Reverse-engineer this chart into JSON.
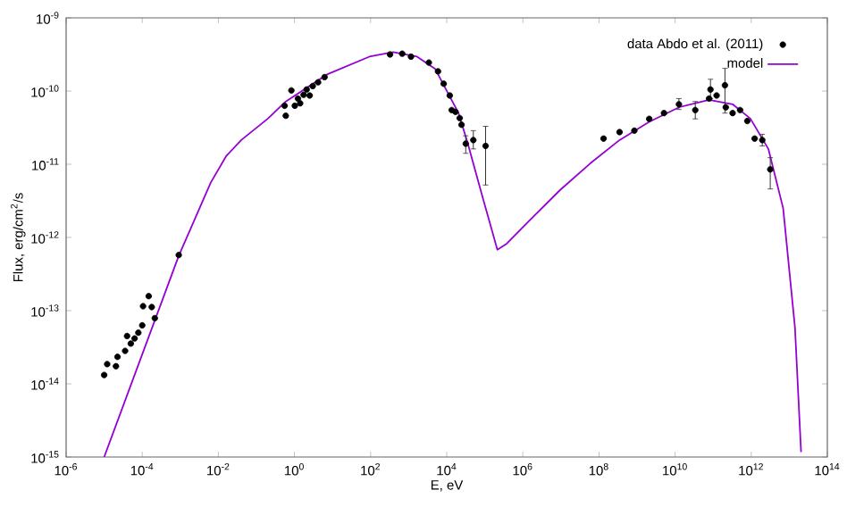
{
  "chart_data": {
    "type": "scatter",
    "xlabel": "E, eV",
    "ylabel": "Flux, erg/cm$^{2}$/s",
    "log": "xy",
    "grid": false,
    "legend": "top right",
    "xlim": [
      1e-06,
      100000000000000.0
    ],
    "ylim": [
      1e-15,
      1e-09
    ],
    "xticks": [
      {
        "value": 1e-06,
        "label": "10$^{-6}$"
      },
      {
        "value": 0.0001,
        "label": "10$^{-4}$"
      },
      {
        "value": 0.01,
        "label": "10$^{-2}$"
      },
      {
        "value": 1,
        "label": "10$^{0}$"
      },
      {
        "value": 100.0,
        "label": "10$^{2}$"
      },
      {
        "value": 10000.0,
        "label": "10$^{4}$"
      },
      {
        "value": 1000000.0,
        "label": "10$^{6}$"
      },
      {
        "value": 100000000.0,
        "label": "10$^{8}$"
      },
      {
        "value": 10000000000.0,
        "label": "10$^{10}$"
      },
      {
        "value": 1000000000000.0,
        "label": "10$^{12}$"
      },
      {
        "value": 100000000000000.0,
        "label": "10$^{14}$"
      }
    ],
    "yticks": [
      {
        "value": 1e-15,
        "label": "10$^{-15}$"
      },
      {
        "value": 1e-14,
        "label": "10$^{-14}$"
      },
      {
        "value": 1e-13,
        "label": "10$^{-13}$"
      },
      {
        "value": 1e-12,
        "label": "10$^{-12}$"
      },
      {
        "value": 1e-11,
        "label": "10$^{-11}$"
      },
      {
        "value": 1e-10,
        "label": "10$^{-10}$"
      },
      {
        "value": 1e-09,
        "label": "10$^{-9}$"
      }
    ],
    "series": [
      {
        "name": "data Abdo et al. (2011)",
        "color": "#000000",
        "marker": "circle",
        "x": [
          1e-05,
          1.2e-05,
          2.04e-05,
          2.24e-05,
          3.55e-05,
          4e-05,
          5e-05,
          6.3e-05,
          7.9e-05,
          0.0001,
          0.000105,
          0.000148,
          0.000178,
          0.000214,
          0.00091,
          0.55,
          0.59,
          0.83,
          1.02,
          1.23,
          1.41,
          1.74,
          2.09,
          2.51,
          3.02,
          4.17,
          6.17,
          324,
          676,
          1150,
          3390,
          5890,
          8320,
          12000.0,
          13500.0,
          17000.0,
          21900.0,
          24500.0,
          31600.0,
          50000.0,
          105000.0,
          132000000.0,
          347000000.0,
          850000000.0,
          2090000000.0,
          5100000000.0,
          12600000000.0,
          33900000000.0,
          78000000000.0,
          85000000000.0,
          123000000000.0,
          204000000000.0,
          214000000000.0,
          324000000000.0,
          510000000000.0,
          790000000000.0,
          1230000000000.0,
          1950000000000.0,
          3160000000000.0
        ],
        "values": [
          1.32e-14,
          1.86e-14,
          1.74e-14,
          2.34e-14,
          2.82e-14,
          4.5e-14,
          3.55e-14,
          4.17e-14,
          5e-14,
          6.3e-14,
          1.15e-13,
          1.58e-13,
          1.12e-13,
          7.9e-14,
          5.75e-13,
          6.3e-11,
          4.6e-11,
          1.02e-10,
          6.3e-11,
          7.9e-11,
          6.8e-11,
          8.9e-11,
          1.05e-10,
          8.7e-11,
          1.17e-10,
          1.32e-10,
          1.55e-10,
          3.16e-10,
          3.24e-10,
          2.95e-10,
          2.45e-10,
          1.86e-10,
          1.26e-10,
          8.7e-11,
          5.5e-11,
          5.2e-11,
          4.27e-11,
          3.47e-11,
          1.91e-11,
          2.14e-11,
          1.78e-11,
          2.24e-11,
          2.75e-11,
          2.88e-11,
          4.17e-11,
          5e-11,
          6.6e-11,
          5.5e-11,
          7.9e-11,
          1.05e-10,
          8.7e-11,
          1.2e-10,
          6e-11,
          5e-11,
          5.5e-11,
          3.9e-11,
          2.24e-11,
          2.14e-11,
          8.5e-12
        ],
        "errors": [
          null,
          null,
          null,
          null,
          null,
          null,
          null,
          null,
          null,
          null,
          null,
          null,
          null,
          null,
          null,
          null,
          null,
          null,
          null,
          null,
          null,
          null,
          null,
          null,
          null,
          null,
          null,
          null,
          null,
          null,
          null,
          null,
          null,
          null,
          null,
          null,
          null,
          null,
          [
            1.41e-11,
            2.45e-11
          ],
          [
            1.62e-11,
            2.88e-11
          ],
          [
            5.2e-12,
            3.3e-11
          ],
          null,
          null,
          null,
          null,
          null,
          [
            5.6e-11,
            7.9e-11
          ],
          [
            4.17e-11,
            7.2e-11
          ],
          null,
          [
            7.9e-11,
            1.45e-10
          ],
          null,
          [
            5e-11,
            2.04e-10
          ],
          null,
          null,
          null,
          null,
          null,
          [
            1.78e-11,
            2.57e-11
          ],
          [
            4.6e-12,
            1.23e-11
          ]
        ]
      },
      {
        "name": "model",
        "type": "line",
        "color": "#9400d3",
        "marker": "none",
        "line_style": "solid",
        "x": [
          1e-05,
          0.00091,
          0.0063,
          0.016,
          0.04,
          0.2,
          0.59,
          7.4,
          93,
          390,
          1660,
          5000,
          20400.0,
          35500.0,
          87000.0,
          214000.0,
          363000.0,
          1550000.0,
          9300000.0,
          58000000.0,
          347000000.0,
          2090000000.0,
          12600000000.0,
          78000000000.0,
          324000000000.0,
          950000000000.0,
          2820000000000.0,
          6900000000000.0,
          14100000000000.0,
          20400000000000.0
        ],
        "values": [
          1e-15,
          5.6e-13,
          5.6e-12,
          1.29e-11,
          2.14e-11,
          4.2e-11,
          7.2e-11,
          1.7e-10,
          2.95e-10,
          3.4e-10,
          2.95e-10,
          2e-10,
          5e-11,
          1.95e-11,
          3.6e-12,
          6.8e-13,
          8.1e-13,
          1.74e-12,
          4.4e-12,
          1.02e-11,
          2.14e-11,
          3.8e-11,
          6e-11,
          7.6e-11,
          6.6e-11,
          4.2e-11,
          1.62e-11,
          2.5e-12,
          5.9e-14,
          1.17e-15
        ]
      }
    ]
  }
}
